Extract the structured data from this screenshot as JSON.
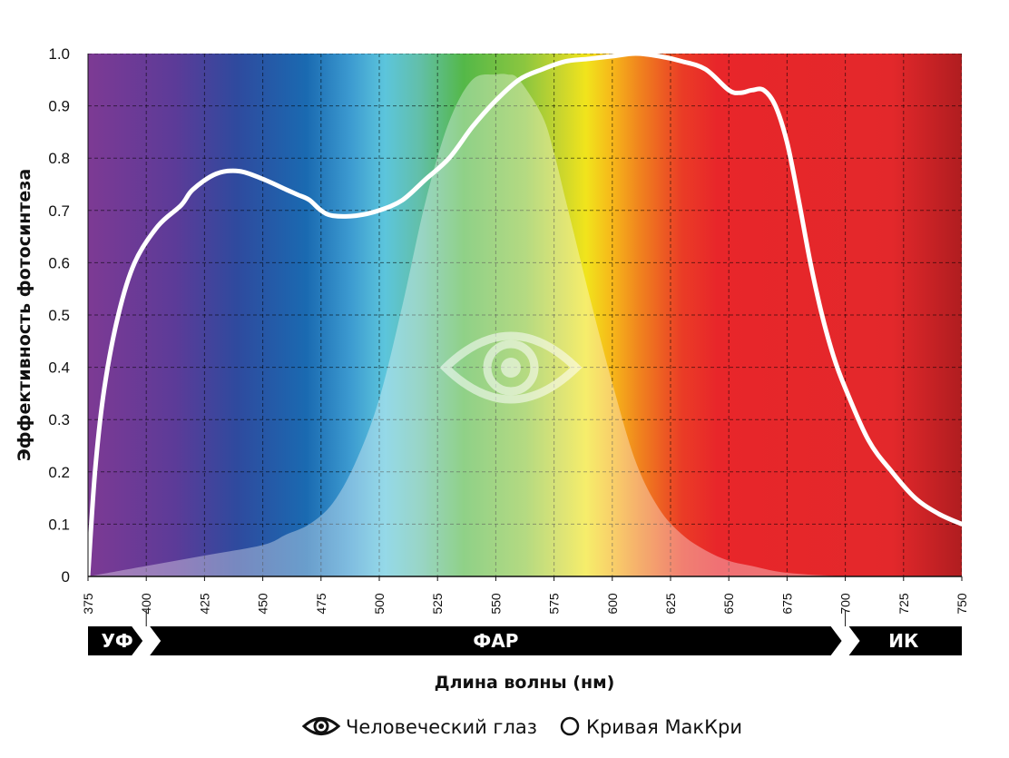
{
  "chart_data": {
    "type": "area",
    "title": "",
    "xlabel": "Длина волны (нм)",
    "ylabel": "Эффективность фотосинтеза",
    "xlim": [
      375,
      750
    ],
    "ylim": [
      0,
      1.0
    ],
    "x_ticks": [
      375,
      400,
      425,
      450,
      475,
      500,
      525,
      550,
      575,
      600,
      625,
      650,
      675,
      700,
      725,
      750
    ],
    "y_ticks": [
      0,
      0.1,
      0.2,
      0.3,
      0.4,
      0.5,
      0.6,
      0.7,
      0.8,
      0.9,
      1.0
    ],
    "y_tick_labels": [
      "0",
      "0.1",
      "0.2",
      "0.3",
      "0.4",
      "0.5",
      "0.6",
      "0.7",
      "0.8",
      "0.9",
      "1.0"
    ],
    "grid": true,
    "background": "visible-spectrum-gradient",
    "series": [
      {
        "name": "Человеческий глаз",
        "kind": "filled-area",
        "color": "#ffffff",
        "x": [
          375,
          400,
          425,
          450,
          460,
          470,
          480,
          490,
          500,
          510,
          520,
          530,
          540,
          550,
          555,
          560,
          570,
          575,
          580,
          590,
          600,
          610,
          620,
          630,
          640,
          650,
          660,
          670,
          680,
          690,
          700
        ],
        "y": [
          0.0,
          0.02,
          0.04,
          0.06,
          0.08,
          0.1,
          0.14,
          0.22,
          0.34,
          0.52,
          0.72,
          0.87,
          0.95,
          0.96,
          0.96,
          0.95,
          0.88,
          0.81,
          0.72,
          0.54,
          0.37,
          0.22,
          0.13,
          0.08,
          0.05,
          0.03,
          0.02,
          0.01,
          0.005,
          0.002,
          0.0
        ]
      },
      {
        "name": "Кривая МакКри",
        "kind": "line",
        "color": "#ffffff",
        "x": [
          375,
          378,
          382,
          388,
          395,
          405,
          415,
          420,
          430,
          440,
          450,
          460,
          465,
          470,
          475,
          480,
          490,
          500,
          510,
          520,
          530,
          540,
          550,
          560,
          570,
          580,
          590,
          600,
          610,
          620,
          630,
          640,
          650,
          655,
          660,
          665,
          670,
          675,
          680,
          685,
          690,
          695,
          700,
          710,
          720,
          730,
          740,
          750
        ],
        "y": [
          0.0,
          0.2,
          0.36,
          0.5,
          0.6,
          0.67,
          0.71,
          0.74,
          0.77,
          0.775,
          0.76,
          0.74,
          0.73,
          0.72,
          0.7,
          0.69,
          0.69,
          0.7,
          0.72,
          0.76,
          0.8,
          0.86,
          0.91,
          0.95,
          0.97,
          0.985,
          0.99,
          0.995,
          1.0,
          0.995,
          0.985,
          0.97,
          0.93,
          0.925,
          0.93,
          0.93,
          0.9,
          0.83,
          0.72,
          0.6,
          0.5,
          0.42,
          0.36,
          0.26,
          0.2,
          0.15,
          0.12,
          0.1
        ]
      }
    ],
    "regions": [
      {
        "label": "УФ",
        "from": 375,
        "to": 400
      },
      {
        "label": "ФАР",
        "from": 400,
        "to": 700
      },
      {
        "label": "ИК",
        "from": 700,
        "to": 750
      }
    ]
  },
  "legend": {
    "placement": "bottom-center",
    "items": [
      {
        "label": "Человеческий глаз",
        "icon": "eye-icon"
      },
      {
        "label": "Кривая МакКри",
        "icon": "circle-icon"
      }
    ]
  },
  "colors": {
    "uv_violet": "#7d3a94",
    "blue": "#1c6cb2",
    "cyan": "#5cc5dc",
    "green": "#54b848",
    "yellow": "#f1e41c",
    "orange": "#f0851e",
    "red": "#e8262a",
    "deep_red": "#b01d20",
    "band": "#000000"
  }
}
